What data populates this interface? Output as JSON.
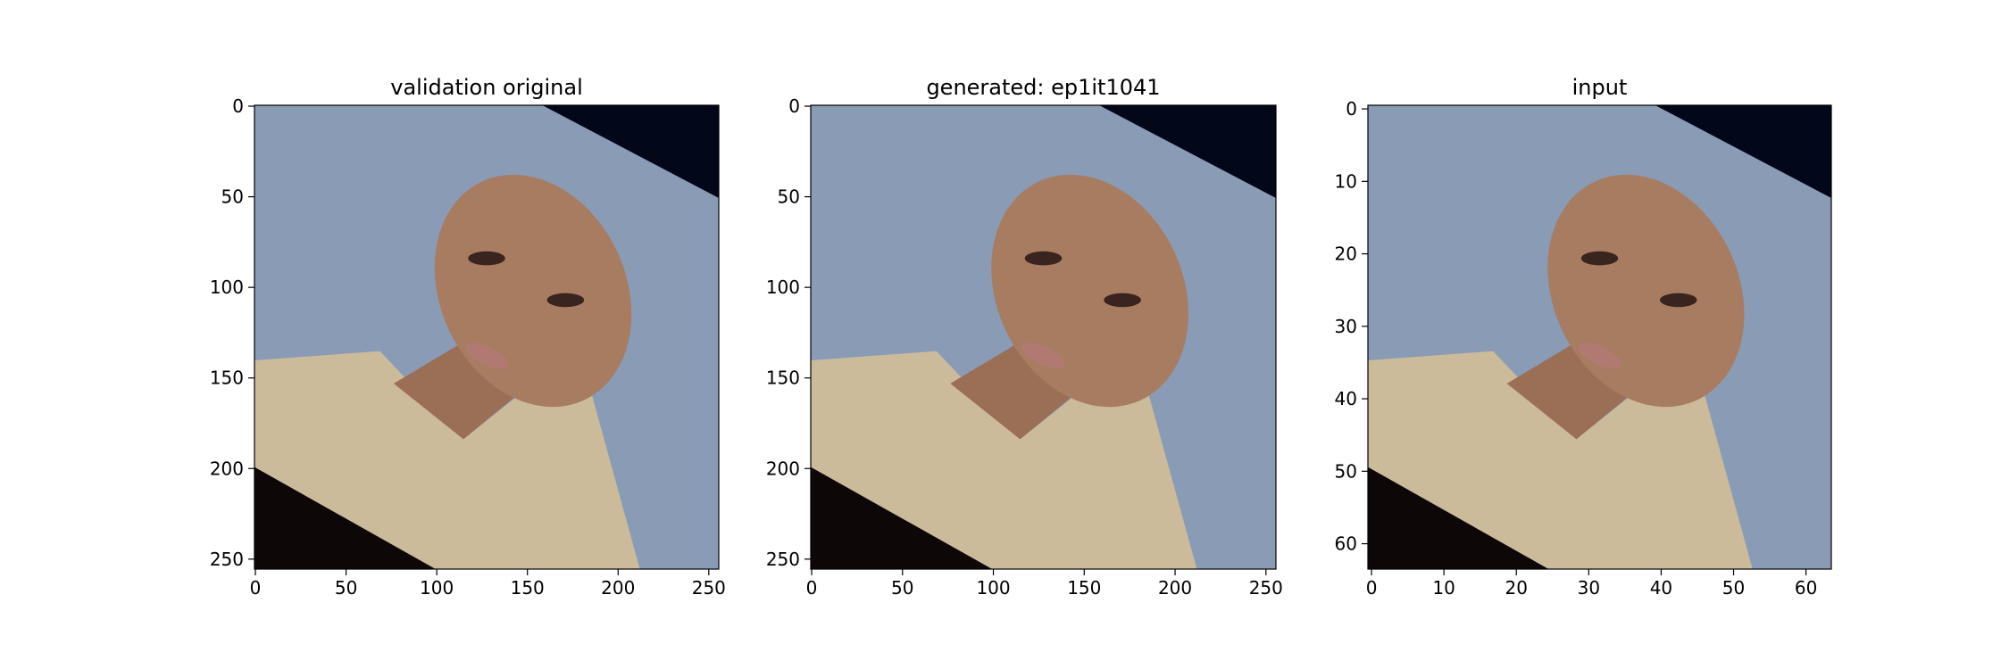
{
  "chart_data": [
    {
      "type": "image",
      "title": "validation original",
      "xlim": [
        -0.5,
        255.5
      ],
      "ylim": [
        255.5,
        -0.5
      ],
      "xticks": [
        0,
        50,
        100,
        150,
        200,
        250
      ],
      "yticks": [
        0,
        50,
        100,
        150,
        200,
        250
      ]
    },
    {
      "type": "image",
      "title": "generated: ep1it1041",
      "xlim": [
        -0.5,
        255.5
      ],
      "ylim": [
        255.5,
        -0.5
      ],
      "xticks": [
        0,
        50,
        100,
        150,
        200,
        250
      ],
      "yticks": [
        0,
        50,
        100,
        150,
        200,
        250
      ]
    },
    {
      "type": "image",
      "title": "input",
      "xlim": [
        -0.5,
        63.5
      ],
      "ylim": [
        63.5,
        -0.5
      ],
      "xticks": [
        0,
        10,
        20,
        30,
        40,
        50,
        60
      ],
      "yticks": [
        0,
        10,
        20,
        30,
        40,
        50,
        60
      ]
    }
  ]
}
